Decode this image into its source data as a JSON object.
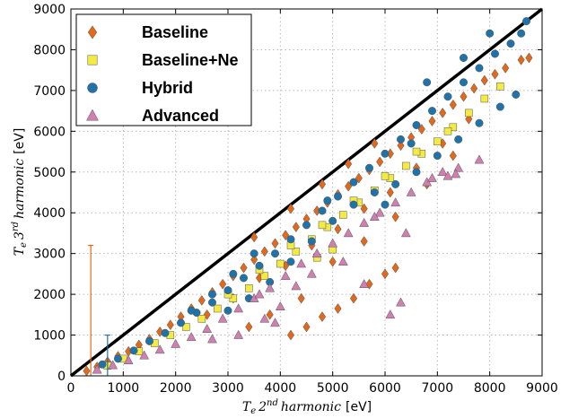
{
  "chart_data": {
    "type": "scatter",
    "title": "",
    "xlabel": "T_e 2nd harmonic",
    "xlabel_parts": {
      "sym": "T",
      "sub": "e",
      "num": "2",
      "sup": "nd",
      "word": "harmonic",
      "unit": "[eV]"
    },
    "ylabel": "T_e 3rd harmonic",
    "ylabel_parts": {
      "sym": "T",
      "sub": "e",
      "num": "3",
      "sup": "rd",
      "word": "harmonic",
      "unit": "[eV]"
    },
    "xlim": [
      0,
      9000
    ],
    "ylim": [
      0,
      9000
    ],
    "xticks": [
      "0",
      "1000",
      "2000",
      "3000",
      "4000",
      "5000",
      "6000",
      "7000",
      "8000",
      "9000"
    ],
    "yticks": [
      "0",
      "1000",
      "2000",
      "3000",
      "4000",
      "5000",
      "6000",
      "7000",
      "8000",
      "9000"
    ],
    "grid": true,
    "legend_position": "top-left",
    "reference_line": {
      "x": [
        0,
        9000
      ],
      "y": [
        0,
        9000
      ],
      "color": "#000000"
    },
    "series": [
      {
        "name": "Baseline",
        "marker": "diamond",
        "color": "#e2681b",
        "points": [
          [
            300,
            120
          ],
          [
            500,
            220
          ],
          [
            700,
            350
          ],
          [
            900,
            480
          ],
          [
            1100,
            600
          ],
          [
            1300,
            760
          ],
          [
            1500,
            900
          ],
          [
            1700,
            1080
          ],
          [
            1900,
            1250
          ],
          [
            2100,
            1450
          ],
          [
            2300,
            1650
          ],
          [
            2500,
            1850
          ],
          [
            2700,
            2050
          ],
          [
            2900,
            2250
          ],
          [
            3100,
            2450
          ],
          [
            3300,
            2650
          ],
          [
            3500,
            2850
          ],
          [
            3700,
            3050
          ],
          [
            3900,
            3250
          ],
          [
            4100,
            3450
          ],
          [
            4300,
            3650
          ],
          [
            4500,
            3850
          ],
          [
            4700,
            4050
          ],
          [
            4900,
            4250
          ],
          [
            5100,
            4450
          ],
          [
            5300,
            4650
          ],
          [
            5500,
            4850
          ],
          [
            5700,
            5050
          ],
          [
            5900,
            5250
          ],
          [
            6100,
            5450
          ],
          [
            6300,
            5650
          ],
          [
            6500,
            5850
          ],
          [
            6700,
            6050
          ],
          [
            6900,
            6250
          ],
          [
            7100,
            6450
          ],
          [
            7300,
            6650
          ],
          [
            7500,
            6850
          ],
          [
            7700,
            7050
          ],
          [
            7900,
            7250
          ],
          [
            8100,
            7400
          ],
          [
            8300,
            7550
          ],
          [
            8600,
            7750
          ],
          [
            8750,
            7800
          ],
          [
            2600,
            1500
          ],
          [
            3100,
            1900
          ],
          [
            3600,
            2400
          ],
          [
            4100,
            2700
          ],
          [
            4600,
            3200
          ],
          [
            5100,
            3600
          ],
          [
            5600,
            4100
          ],
          [
            6100,
            4500
          ],
          [
            6600,
            5100
          ],
          [
            7100,
            5700
          ],
          [
            7600,
            6300
          ],
          [
            4200,
            1000
          ],
          [
            4500,
            1200
          ],
          [
            4800,
            1450
          ],
          [
            5100,
            1650
          ],
          [
            5400,
            1900
          ],
          [
            5700,
            2250
          ],
          [
            6000,
            2500
          ],
          [
            6200,
            2650
          ],
          [
            3400,
            1200
          ],
          [
            3800,
            1500
          ],
          [
            4400,
            1900
          ],
          [
            5000,
            2800
          ],
          [
            5600,
            3300
          ],
          [
            6200,
            3900
          ],
          [
            6800,
            4700
          ],
          [
            7300,
            5400
          ],
          [
            3500,
            3400
          ],
          [
            4200,
            4100
          ],
          [
            4800,
            4700
          ],
          [
            5300,
            5200
          ],
          [
            5800,
            5700
          ]
        ],
        "error_bars": [
          {
            "x": 380,
            "y": 200,
            "ylow": 0,
            "yhigh": 3200
          }
        ]
      },
      {
        "name": "Baseline+Ne",
        "marker": "square",
        "color": "#f3ea44",
        "points": [
          [
            700,
            250
          ],
          [
            1000,
            420
          ],
          [
            1300,
            600
          ],
          [
            1600,
            800
          ],
          [
            1900,
            1000
          ],
          [
            2200,
            1200
          ],
          [
            2500,
            1400
          ],
          [
            2800,
            1650
          ],
          [
            3100,
            1900
          ],
          [
            3400,
            2150
          ],
          [
            3700,
            2450
          ],
          [
            4000,
            2750
          ],
          [
            4300,
            3050
          ],
          [
            4600,
            3350
          ],
          [
            4900,
            3650
          ],
          [
            5200,
            3950
          ],
          [
            5500,
            4250
          ],
          [
            5800,
            4550
          ],
          [
            6100,
            4850
          ],
          [
            6400,
            5150
          ],
          [
            6700,
            5450
          ],
          [
            7000,
            5750
          ],
          [
            7300,
            6100
          ],
          [
            7600,
            6450
          ],
          [
            7900,
            6800
          ],
          [
            8200,
            7100
          ],
          [
            3000,
            2000
          ],
          [
            3600,
            2600
          ],
          [
            4200,
            3200
          ],
          [
            4800,
            3700
          ],
          [
            5400,
            4300
          ],
          [
            6000,
            4900
          ],
          [
            6600,
            5500
          ],
          [
            7200,
            6000
          ],
          [
            4700,
            2900
          ],
          [
            5000,
            3100
          ]
        ]
      },
      {
        "name": "Hybrid",
        "marker": "circle",
        "color": "#1f73a8",
        "points": [
          [
            600,
            280
          ],
          [
            900,
            420
          ],
          [
            1200,
            620
          ],
          [
            1500,
            850
          ],
          [
            1800,
            1050
          ],
          [
            2100,
            1300
          ],
          [
            2400,
            1550
          ],
          [
            2700,
            1800
          ],
          [
            3000,
            2100
          ],
          [
            3300,
            2400
          ],
          [
            3600,
            2700
          ],
          [
            3900,
            3000
          ],
          [
            4200,
            3350
          ],
          [
            4500,
            3700
          ],
          [
            4800,
            4050
          ],
          [
            5100,
            4400
          ],
          [
            5400,
            4750
          ],
          [
            5700,
            5100
          ],
          [
            6000,
            5450
          ],
          [
            6300,
            5800
          ],
          [
            6600,
            6150
          ],
          [
            6900,
            6500
          ],
          [
            7200,
            6850
          ],
          [
            7500,
            7200
          ],
          [
            7800,
            7550
          ],
          [
            8100,
            7900
          ],
          [
            8400,
            8150
          ],
          [
            8600,
            8400
          ],
          [
            8700,
            8700
          ],
          [
            3000,
            1600
          ],
          [
            3400,
            1900
          ],
          [
            3800,
            2300
          ],
          [
            4200,
            2800
          ],
          [
            4600,
            3300
          ],
          [
            5000,
            3800
          ],
          [
            5400,
            4200
          ],
          [
            5800,
            4500
          ],
          [
            6200,
            4700
          ],
          [
            6600,
            5000
          ],
          [
            7000,
            5400
          ],
          [
            7400,
            5800
          ],
          [
            7800,
            6200
          ],
          [
            8200,
            6600
          ],
          [
            8500,
            6900
          ],
          [
            2300,
            1600
          ],
          [
            2700,
            2000
          ],
          [
            3100,
            2500
          ],
          [
            3500,
            3000
          ],
          [
            6000,
            4200
          ],
          [
            4900,
            4300
          ],
          [
            6800,
            7200
          ],
          [
            7500,
            7800
          ],
          [
            8000,
            8400
          ],
          [
            6500,
            5700
          ]
        ],
        "error_bars": [
          {
            "x": 700,
            "y": 400,
            "ylow": 0,
            "yhigh": 1000
          }
        ]
      },
      {
        "name": "Advanced",
        "marker": "triangle",
        "color": "#cf7fb0",
        "points": [
          [
            500,
            150
          ],
          [
            800,
            260
          ],
          [
            1100,
            380
          ],
          [
            1400,
            500
          ],
          [
            1700,
            640
          ],
          [
            2000,
            780
          ],
          [
            2300,
            950
          ],
          [
            2600,
            1150
          ],
          [
            2900,
            1400
          ],
          [
            3200,
            1650
          ],
          [
            3500,
            1900
          ],
          [
            3800,
            2150
          ],
          [
            4100,
            2450
          ],
          [
            4400,
            2750
          ],
          [
            4700,
            3000
          ],
          [
            5000,
            3250
          ],
          [
            5300,
            3500
          ],
          [
            5600,
            3750
          ],
          [
            5900,
            4000
          ],
          [
            6200,
            4250
          ],
          [
            6500,
            4500
          ],
          [
            6800,
            4750
          ],
          [
            7100,
            5000
          ],
          [
            7400,
            5100
          ],
          [
            7800,
            5300
          ],
          [
            3700,
            1400
          ],
          [
            3900,
            1300
          ],
          [
            4300,
            2200
          ],
          [
            4600,
            2500
          ],
          [
            5200,
            2800
          ],
          [
            5600,
            2250
          ],
          [
            6100,
            1500
          ],
          [
            6300,
            1800
          ],
          [
            6400,
            3500
          ],
          [
            6900,
            4850
          ],
          [
            7200,
            4900
          ],
          [
            7350,
            4950
          ],
          [
            5800,
            3900
          ],
          [
            3600,
            2000
          ],
          [
            4000,
            1700
          ],
          [
            2700,
            900
          ],
          [
            3200,
            1000
          ]
        ]
      }
    ]
  }
}
